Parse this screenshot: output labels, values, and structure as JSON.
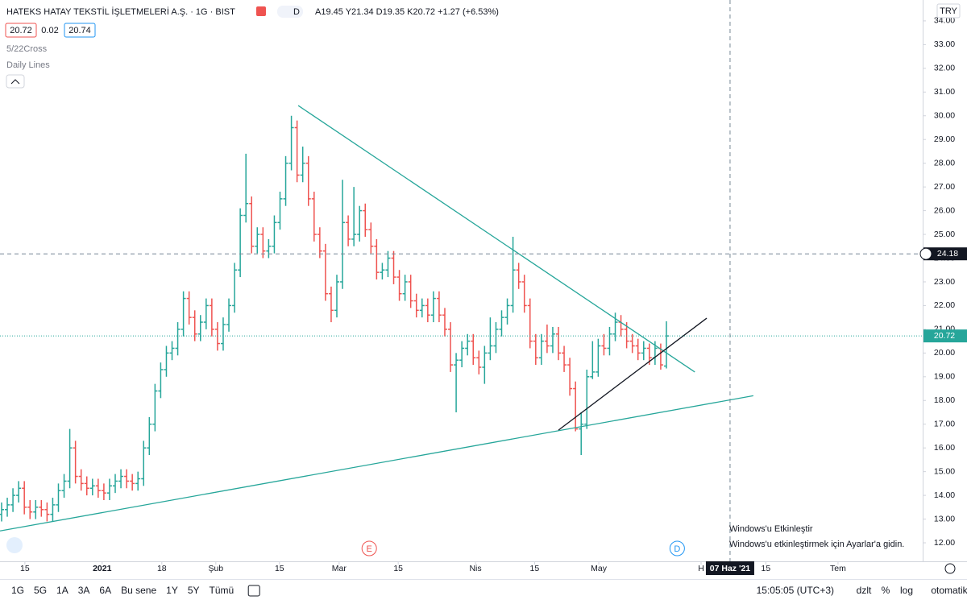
{
  "header": {
    "title": "HATEKS HATAY TEKSTİL İŞLETMELERİ A.Ş. · 1G · BIST",
    "ohlc": "A19.45 Y21.34 D19.35 K20.72 +1.27 (+6.53%)",
    "bid": "20.72",
    "spread": "0.02",
    "ask": "20.74",
    "indicators": [
      "5/22Cross",
      "Daily Lines"
    ],
    "currency": "TRY"
  },
  "toolbar": {
    "ranges": [
      "1G",
      "5G",
      "1A",
      "3A",
      "6A",
      "Bu sene",
      "1Y",
      "5Y",
      "Tümü"
    ],
    "time": "15:05:05 (UTC+3)",
    "options": [
      "dzlt",
      "%",
      "log",
      "otomatik"
    ]
  },
  "watermark": [
    "Windows'u Etkinleştir",
    "Windows'u etkinleştirmek için Ayarlar'a gidin."
  ],
  "chart_data": {
    "type": "ohlc",
    "up_color": "#26a69a",
    "down_color": "#ef5350",
    "xlim": [
      -0.28,
      162.1
    ],
    "ylim": [
      11.22,
      34.88
    ],
    "yticks": [
      {
        "value": 12,
        "label": "12.00"
      },
      {
        "value": 13,
        "label": "13.00"
      },
      {
        "value": 14,
        "label": "14.00"
      },
      {
        "value": 15,
        "label": "15.00"
      },
      {
        "value": 16,
        "label": "16.00"
      },
      {
        "value": 17,
        "label": "17.00"
      },
      {
        "value": 18,
        "label": "18.00"
      },
      {
        "value": 19,
        "label": "19.00"
      },
      {
        "value": 20,
        "label": "20.00"
      },
      {
        "value": 21,
        "label": "21.00"
      },
      {
        "value": 22,
        "label": "22.00"
      },
      {
        "value": 23,
        "label": "23.00"
      },
      {
        "value": 24,
        "label": "24.00"
      },
      {
        "value": 25,
        "label": "25.00"
      },
      {
        "value": 26,
        "label": "26.00"
      },
      {
        "value": 27,
        "label": "27.00"
      },
      {
        "value": 28,
        "label": "28.00"
      },
      {
        "value": 29,
        "label": "29.00"
      },
      {
        "value": 30,
        "label": "30.00"
      },
      {
        "value": 31,
        "label": "31.00"
      },
      {
        "value": 32,
        "label": "32.00"
      },
      {
        "value": 33,
        "label": "33.00"
      },
      {
        "value": 34,
        "label": "34.00"
      }
    ],
    "xticks": [
      {
        "value": 4.1,
        "label": "15"
      },
      {
        "value": 17.7,
        "label": "2021"
      },
      {
        "value": 28.2,
        "label": "18"
      },
      {
        "value": 37.7,
        "label": "Şub"
      },
      {
        "value": 48.9,
        "label": "15"
      },
      {
        "value": 59.4,
        "label": "Mar"
      },
      {
        "value": 69.8,
        "label": "15"
      },
      {
        "value": 83.4,
        "label": "Nis"
      },
      {
        "value": 93.8,
        "label": "15"
      },
      {
        "value": 105.1,
        "label": "May"
      },
      {
        "value": 123.1,
        "label": "H"
      },
      {
        "value": 134.5,
        "label": "15"
      },
      {
        "value": 147.2,
        "label": "Tem"
      }
    ],
    "crosshair": {
      "x": {
        "value": 128.2,
        "label": "07 Haz '21"
      },
      "y": 24.18
    },
    "events": [
      {
        "label": "E",
        "x": 64.7
      },
      {
        "label": "D",
        "x": 118.9
      }
    ],
    "drawings": [
      {
        "color": "#26a69a",
        "points": [
          [
            52.2,
            30.43
          ],
          [
            122.0,
            19.2
          ]
        ]
      },
      {
        "color": "#26a69a",
        "points": [
          [
            -0.28,
            12.5
          ],
          [
            132.3,
            18.2
          ]
        ]
      },
      {
        "color": "#131722",
        "points": [
          [
            98.0,
            16.75
          ],
          [
            124.1,
            21.47
          ]
        ]
      }
    ],
    "values": [
      [
        13.2,
        13.7,
        12.9,
        13.4
      ],
      [
        13.4,
        13.9,
        13.1,
        13.6
      ],
      [
        13.6,
        14.3,
        13.3,
        14.0
      ],
      [
        14.0,
        14.6,
        13.7,
        14.3
      ],
      [
        14.3,
        14.6,
        13.2,
        13.5
      ],
      [
        13.5,
        13.8,
        13.0,
        13.3
      ],
      [
        13.3,
        13.8,
        13.0,
        13.5
      ],
      [
        13.5,
        13.8,
        13.1,
        13.4
      ],
      [
        13.4,
        13.7,
        12.9,
        13.2
      ],
      [
        13.2,
        13.9,
        12.9,
        13.6
      ],
      [
        13.6,
        14.5,
        13.3,
        14.2
      ],
      [
        14.2,
        14.9,
        13.9,
        14.6
      ],
      [
        14.6,
        16.8,
        14.3,
        16.0
      ],
      [
        16.0,
        16.3,
        14.5,
        14.8
      ],
      [
        14.8,
        15.1,
        14.2,
        14.5
      ],
      [
        14.5,
        14.8,
        14.0,
        14.3
      ],
      [
        14.3,
        14.7,
        14.0,
        14.4
      ],
      [
        14.4,
        14.7,
        13.9,
        14.2
      ],
      [
        14.2,
        14.5,
        13.8,
        14.1
      ],
      [
        14.1,
        14.7,
        13.8,
        14.4
      ],
      [
        14.4,
        14.9,
        14.1,
        14.6
      ],
      [
        14.6,
        15.1,
        14.3,
        14.8
      ],
      [
        14.8,
        15.1,
        14.3,
        14.6
      ],
      [
        14.6,
        14.9,
        14.2,
        14.5
      ],
      [
        14.5,
        15.0,
        14.2,
        14.7
      ],
      [
        14.7,
        16.3,
        14.4,
        16.0
      ],
      [
        16.0,
        17.3,
        15.7,
        17.0
      ],
      [
        17.0,
        18.7,
        16.7,
        18.4
      ],
      [
        18.4,
        19.6,
        18.1,
        19.3
      ],
      [
        19.3,
        20.3,
        19.0,
        20.0
      ],
      [
        20.0,
        20.5,
        19.7,
        20.2
      ],
      [
        20.2,
        21.3,
        19.9,
        21.0
      ],
      [
        21.0,
        22.6,
        20.7,
        22.3
      ],
      [
        22.3,
        22.6,
        21.2,
        21.5
      ],
      [
        21.5,
        21.8,
        20.5,
        20.8
      ],
      [
        20.8,
        21.6,
        20.5,
        21.3
      ],
      [
        21.3,
        22.3,
        21.0,
        22.0
      ],
      [
        22.0,
        22.3,
        20.7,
        21.0
      ],
      [
        21.0,
        21.3,
        20.1,
        20.4
      ],
      [
        20.4,
        21.5,
        20.1,
        21.2
      ],
      [
        21.2,
        22.3,
        20.9,
        22.0
      ],
      [
        22.0,
        23.8,
        21.7,
        23.5
      ],
      [
        23.5,
        26.1,
        23.2,
        25.8
      ],
      [
        25.8,
        28.4,
        25.5,
        26.3
      ],
      [
        26.3,
        26.6,
        24.2,
        24.5
      ],
      [
        24.5,
        25.3,
        24.2,
        25.0
      ],
      [
        25.0,
        25.3,
        24.0,
        24.3
      ],
      [
        24.3,
        24.8,
        24.0,
        24.5
      ],
      [
        24.5,
        25.8,
        24.2,
        25.5
      ],
      [
        25.5,
        26.8,
        25.2,
        26.5
      ],
      [
        26.5,
        28.3,
        26.2,
        28.0
      ],
      [
        28.0,
        30.0,
        27.7,
        29.5
      ],
      [
        29.5,
        29.8,
        27.2,
        27.5
      ],
      [
        27.5,
        28.7,
        27.2,
        28.0
      ],
      [
        28.0,
        28.3,
        26.2,
        26.5
      ],
      [
        26.5,
        26.8,
        24.7,
        25.0
      ],
      [
        25.0,
        25.3,
        24.0,
        24.3
      ],
      [
        24.3,
        24.6,
        22.2,
        22.5
      ],
      [
        22.5,
        22.8,
        21.3,
        21.8
      ],
      [
        21.8,
        23.3,
        21.5,
        23.0
      ],
      [
        23.0,
        27.3,
        22.7,
        25.5
      ],
      [
        25.5,
        25.8,
        24.5,
        24.8
      ],
      [
        24.8,
        27.0,
        24.5,
        25.0
      ],
      [
        25.0,
        26.2,
        24.7,
        26.0
      ],
      [
        26.0,
        26.3,
        24.9,
        25.2
      ],
      [
        25.2,
        25.5,
        24.2,
        24.5
      ],
      [
        24.5,
        24.8,
        23.1,
        23.4
      ],
      [
        23.4,
        23.8,
        23.1,
        23.5
      ],
      [
        23.5,
        24.3,
        23.2,
        24.0
      ],
      [
        24.0,
        24.3,
        22.9,
        23.2
      ],
      [
        23.2,
        23.5,
        22.2,
        22.5
      ],
      [
        22.5,
        23.3,
        22.2,
        23.0
      ],
      [
        23.0,
        23.3,
        21.9,
        22.2
      ],
      [
        22.2,
        22.5,
        21.5,
        21.8
      ],
      [
        21.8,
        22.3,
        21.5,
        22.0
      ],
      [
        22.0,
        22.3,
        21.3,
        21.6
      ],
      [
        21.6,
        22.6,
        21.3,
        22.3
      ],
      [
        22.3,
        22.6,
        21.3,
        21.6
      ],
      [
        21.6,
        21.9,
        20.7,
        21.0
      ],
      [
        21.0,
        21.3,
        19.2,
        19.5
      ],
      [
        19.5,
        20.0,
        17.5,
        19.7
      ],
      [
        19.7,
        20.5,
        19.4,
        20.2
      ],
      [
        20.2,
        20.8,
        19.9,
        20.5
      ],
      [
        20.5,
        20.8,
        19.5,
        19.8
      ],
      [
        19.8,
        20.1,
        19.1,
        19.4
      ],
      [
        19.4,
        20.3,
        18.7,
        20.0
      ],
      [
        20.0,
        21.5,
        19.7,
        20.3
      ],
      [
        20.3,
        21.3,
        20.0,
        21.0
      ],
      [
        21.0,
        21.8,
        20.7,
        21.5
      ],
      [
        21.5,
        22.3,
        21.2,
        22.0
      ],
      [
        22.0,
        24.9,
        21.7,
        23.5
      ],
      [
        23.5,
        23.8,
        22.7,
        23.0
      ],
      [
        23.0,
        23.3,
        21.7,
        22.0
      ],
      [
        22.0,
        22.3,
        20.2,
        20.5
      ],
      [
        20.5,
        20.8,
        19.5,
        19.8
      ],
      [
        19.8,
        20.8,
        19.5,
        20.5
      ],
      [
        20.5,
        21.2,
        20.0,
        20.3
      ],
      [
        20.3,
        21.1,
        20.0,
        20.8
      ],
      [
        20.8,
        21.1,
        19.7,
        20.0
      ],
      [
        20.0,
        20.3,
        19.2,
        19.5
      ],
      [
        19.5,
        19.8,
        18.2,
        18.5
      ],
      [
        18.5,
        18.8,
        16.7,
        16.8
      ],
      [
        16.8,
        17.5,
        15.7,
        17.0
      ],
      [
        17.0,
        19.3,
        16.8,
        19.0
      ],
      [
        19.0,
        20.5,
        18.9,
        19.2
      ],
      [
        19.2,
        20.6,
        19.0,
        20.3
      ],
      [
        20.3,
        20.8,
        19.9,
        20.2
      ],
      [
        20.2,
        21.1,
        19.9,
        20.8
      ],
      [
        20.8,
        21.7,
        20.5,
        21.3
      ],
      [
        21.3,
        21.6,
        20.7,
        21.0
      ],
      [
        21.0,
        21.3,
        20.2,
        20.5
      ],
      [
        20.5,
        20.8,
        20.0,
        20.3
      ],
      [
        20.3,
        20.6,
        19.7,
        20.0
      ],
      [
        20.0,
        20.5,
        19.7,
        20.2
      ],
      [
        20.2,
        20.4,
        19.5,
        19.8
      ],
      [
        19.8,
        20.5,
        19.5,
        20.2
      ],
      [
        20.2,
        20.4,
        19.3,
        19.5
      ],
      [
        19.45,
        21.34,
        19.35,
        20.72
      ]
    ]
  }
}
